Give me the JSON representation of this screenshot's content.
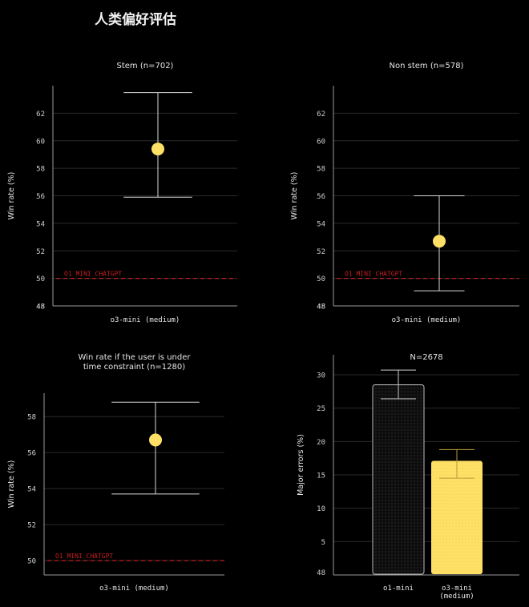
{
  "page_title": "人类偏好评估",
  "colors": {
    "background": "#000000",
    "grid": "#2a2a2a",
    "axis": "#9a9a9a",
    "text": "#e6e6e6",
    "point": "#ffe066",
    "baseline": "#c81e1e",
    "bar_dark": "#0d0d0d",
    "bar_yellow": "#ffe066"
  },
  "chart_data": [
    {
      "type": "scatter",
      "title": "Stem (n=702)",
      "xlabel": "o3-mini (medium)",
      "ylabel": "Win rate (%)",
      "ylim": [
        48,
        64
      ],
      "yticks": [
        48,
        50,
        52,
        54,
        56,
        58,
        60,
        62
      ],
      "grid": true,
      "baseline": {
        "value": 50,
        "label": "O1 MINI CHATGPT"
      },
      "point": {
        "value": 59.4,
        "err_low": 55.9,
        "err_high": 63.5
      }
    },
    {
      "type": "scatter",
      "title": "Non stem (n=578)",
      "xlabel": "o3-mini (medium)",
      "ylabel": "Win rate (%)",
      "ylim": [
        48,
        64
      ],
      "yticks": [
        48,
        50,
        52,
        54,
        56,
        58,
        60,
        62
      ],
      "grid": true,
      "baseline": {
        "value": 50,
        "label": "O1 MINI CHATGPT"
      },
      "point": {
        "value": 52.7,
        "err_low": 49.1,
        "err_high": 56.0
      }
    },
    {
      "type": "scatter",
      "title": "Win rate if the user is under time constraint (n=1280)",
      "xlabel": "o3-mini (medium)",
      "ylabel": "Win rate (%)",
      "ylim": [
        49.2,
        59.3
      ],
      "yticks": [
        50,
        52,
        54,
        56,
        58
      ],
      "grid": true,
      "baseline": {
        "value": 50,
        "label": "O1 MINI CHATGPT"
      },
      "point": {
        "value": 56.7,
        "err_low": 53.7,
        "err_high": 58.8
      }
    },
    {
      "type": "bar",
      "title": "N=2678",
      "xlabel": "",
      "ylabel": "Major errors (%)",
      "ylim": [
        0,
        33
      ],
      "yticks": [
        5,
        10,
        15,
        20,
        25,
        30
      ],
      "bottom_tick_label": "48",
      "grid": true,
      "categories": [
        "o1-mini",
        "o3-mini\n(medium)"
      ],
      "values": [
        28.5,
        17.1
      ],
      "err_low": [
        26.4,
        14.5
      ],
      "err_high": [
        30.7,
        18.8
      ]
    }
  ]
}
